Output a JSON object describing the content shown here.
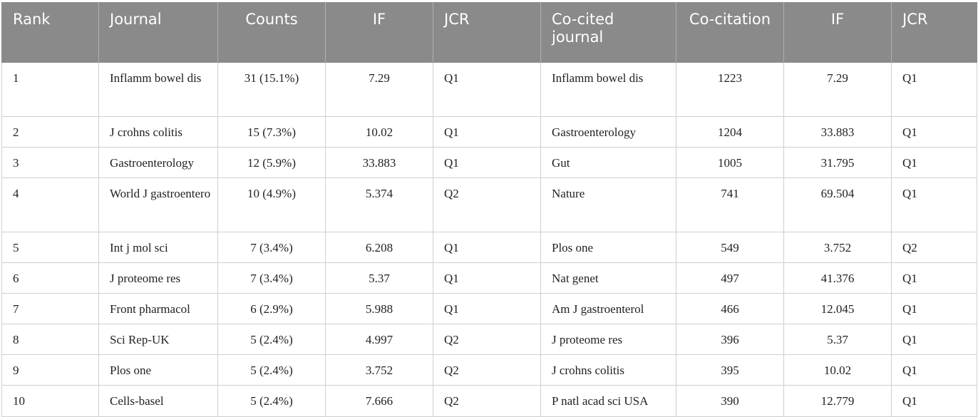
{
  "headers": [
    "Rank",
    "Journal",
    "Counts",
    "IF",
    "JCR",
    "Co-cited journal",
    "Co-citation",
    "IF",
    "JCR"
  ],
  "rows": [
    [
      "1",
      "Inflamm bowel dis",
      "31 (15.1%)",
      "7.29",
      "Q1",
      "Inflamm bowel dis",
      "1223",
      "7.29",
      "Q1"
    ],
    [
      "2",
      "J crohns colitis",
      "15 (7.3%)",
      "10.02",
      "Q1",
      "Gastroenterology",
      "1204",
      "33.883",
      "Q1"
    ],
    [
      "3",
      "Gastroenterology",
      "12 (5.9%)",
      "33.883",
      "Q1",
      "Gut",
      "1005",
      "31.795",
      "Q1"
    ],
    [
      "4",
      "World J gastroentero",
      "10 (4.9%)",
      "5.374",
      "Q2",
      "Nature",
      "741",
      "69.504",
      "Q1"
    ],
    [
      "5",
      "Int j mol sci",
      "7 (3.4%)",
      "6.208",
      "Q1",
      "Plos one",
      "549",
      "3.752",
      "Q2"
    ],
    [
      "6",
      "J proteome res",
      "7 (3.4%)",
      "5.37",
      "Q1",
      "Nat genet",
      "497",
      "41.376",
      "Q1"
    ],
    [
      "7",
      "Front pharmacol",
      "6 (2.9%)",
      "5.988",
      "Q1",
      "Am J gastroenterol",
      "466",
      "12.045",
      "Q1"
    ],
    [
      "8",
      "Sci Rep-UK",
      "5 (2.4%)",
      "4.997",
      "Q2",
      "J proteome res",
      "396",
      "5.37",
      "Q1"
    ],
    [
      "9",
      "Plos one",
      "5 (2.4%)",
      "3.752",
      "Q2",
      "J crohns colitis",
      "395",
      "10.02",
      "Q1"
    ],
    [
      "10",
      "Cells-basel",
      "5 (2.4%)",
      "7.666",
      "Q2",
      "P natl acad sci USA",
      "390",
      "12.779",
      "Q1"
    ]
  ]
}
